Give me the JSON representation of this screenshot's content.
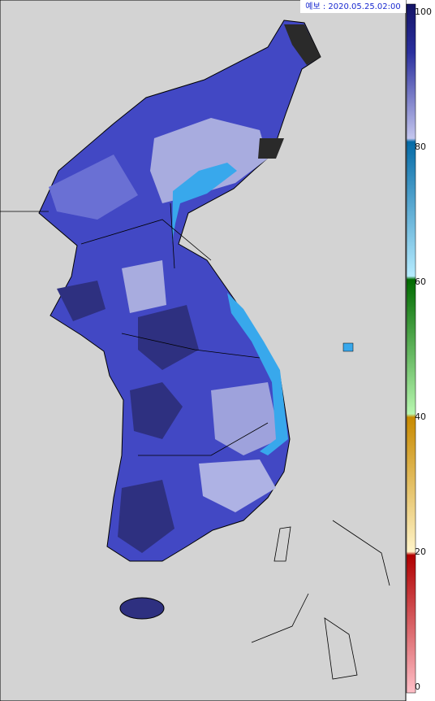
{
  "header": {
    "timestamp": "예보 : 2020.05.25.02:00"
  },
  "legend": {
    "ticks": [
      100,
      80,
      60,
      40,
      20,
      0
    ]
  }
}
